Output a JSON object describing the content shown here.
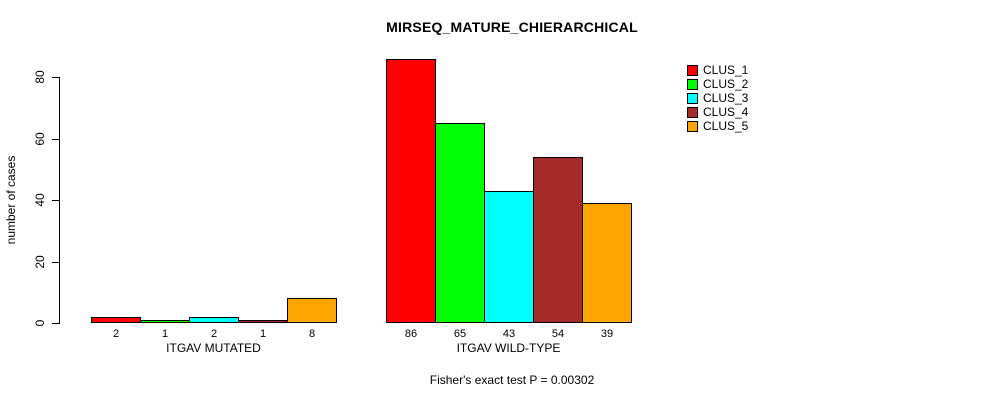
{
  "chart_data": {
    "type": "bar",
    "title": "MIRSEQ_MATURE_CHIERARCHICAL",
    "ylabel": "number of cases",
    "xlabel": "",
    "ylim": [
      0,
      88
    ],
    "yticks": [
      0,
      20,
      40,
      60,
      80
    ],
    "grid": false,
    "legend_position": "top-right",
    "categories": [
      "ITGAV MUTATED",
      "ITGAV WILD-TYPE"
    ],
    "series": [
      {
        "name": "CLUS_1",
        "color": "#FF0000",
        "values": [
          2,
          86
        ]
      },
      {
        "name": "CLUS_2",
        "color": "#00FF00",
        "values": [
          1,
          65
        ]
      },
      {
        "name": "CLUS_3",
        "color": "#00FFFF",
        "values": [
          2,
          43
        ]
      },
      {
        "name": "CLUS_4",
        "color": "#A52A2A",
        "values": [
          1,
          54
        ]
      },
      {
        "name": "CLUS_5",
        "color": "#FFA500",
        "values": [
          8,
          39
        ]
      }
    ],
    "bar_value_labels_shown": true,
    "annotation": "Fisher's exact test P = 0.00302",
    "axis_color": "#000000",
    "background_color": "#FFFFFF"
  }
}
